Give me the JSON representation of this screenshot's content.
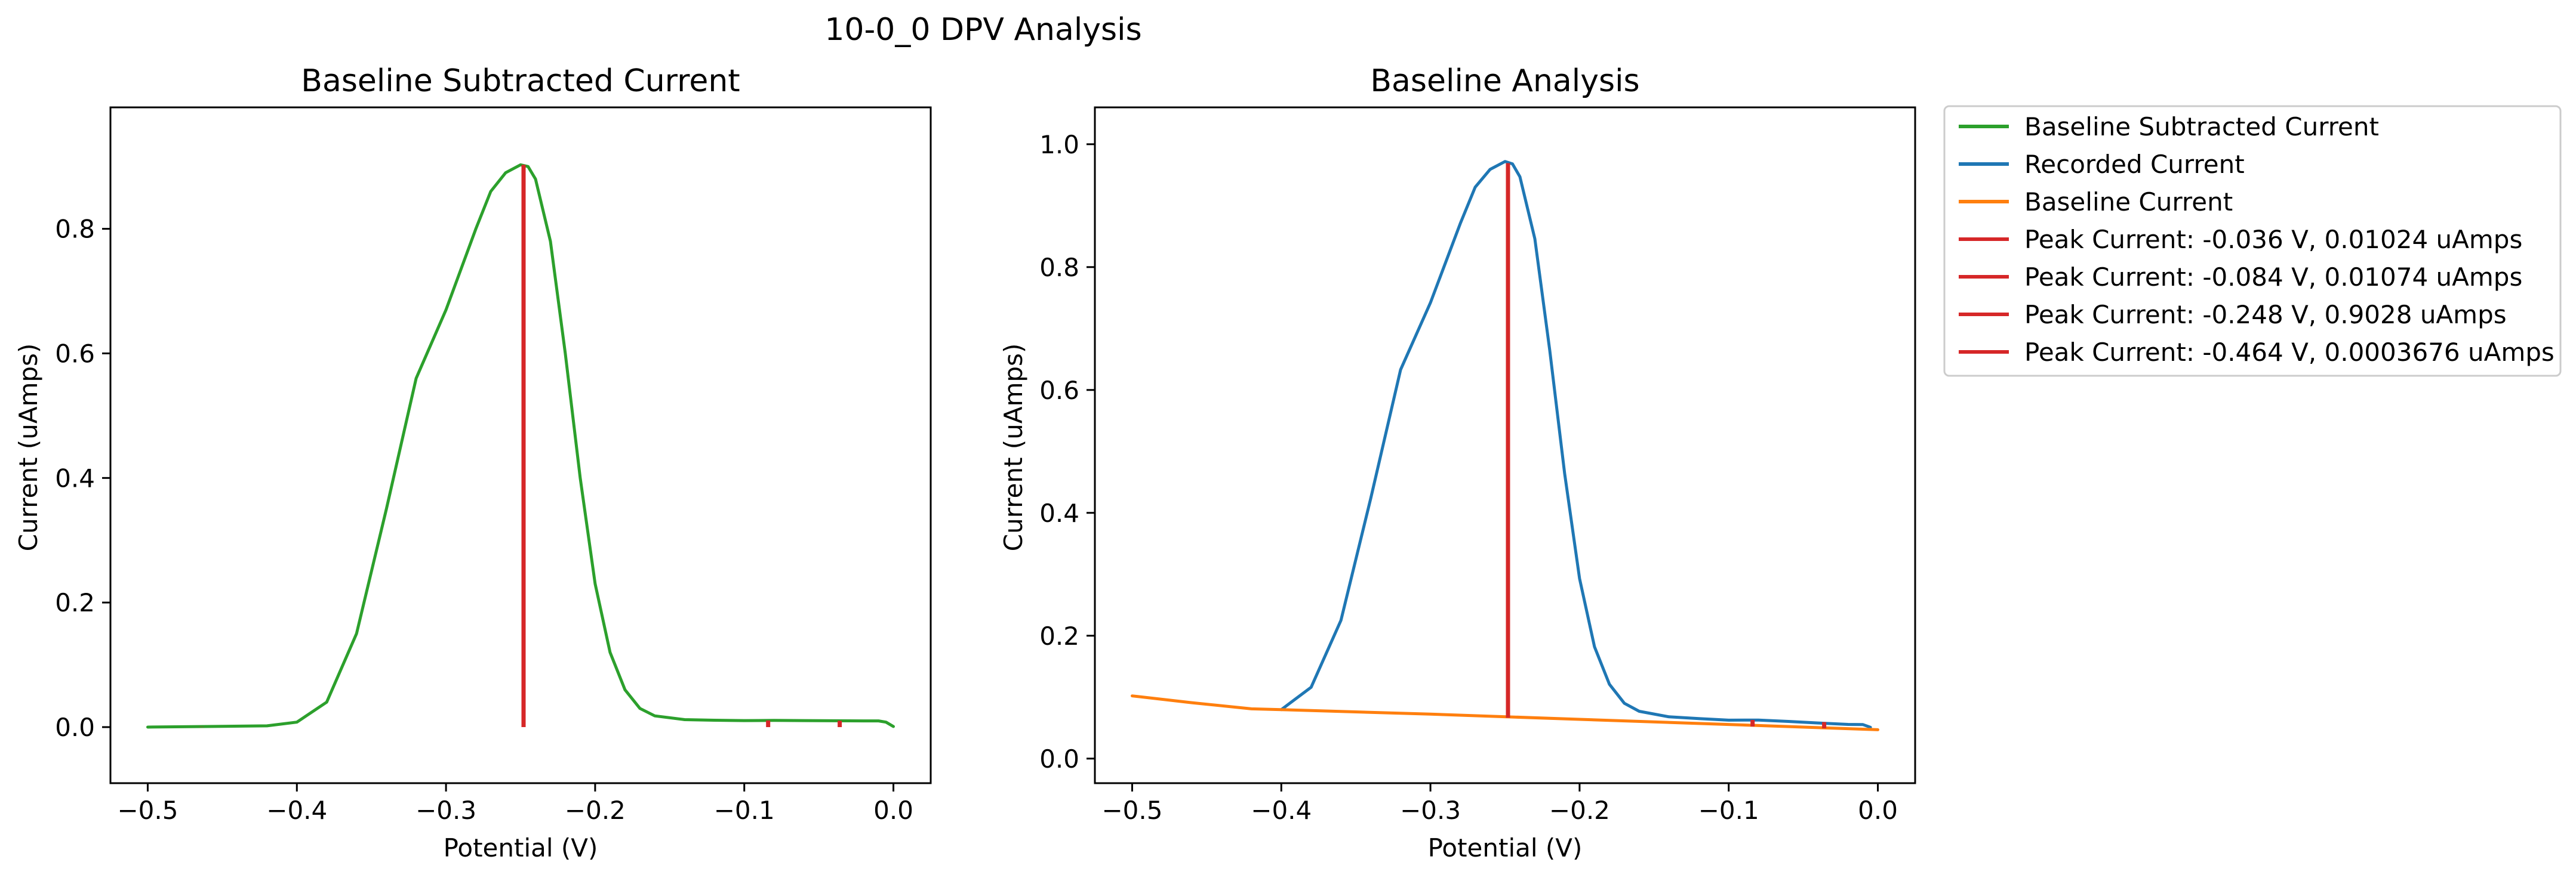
{
  "figure": {
    "suptitle": "10-0_0 DPV Analysis"
  },
  "colors": {
    "green": "#2ca02c",
    "blue": "#1f77b4",
    "orange": "#ff7f0e",
    "red": "#d62728"
  },
  "chart_data": [
    {
      "type": "line",
      "title": "Baseline Subtracted Current",
      "xlabel": "Potential (V)",
      "ylabel": "Current (uAmps)",
      "xlim": [
        -0.525,
        0.025
      ],
      "ylim": [
        -0.09,
        0.995
      ],
      "xticks": [
        -0.5,
        -0.4,
        -0.3,
        -0.2,
        -0.1,
        0.0
      ],
      "xtick_labels": [
        "−0.5",
        "−0.4",
        "−0.3",
        "−0.2",
        "−0.1",
        "0.0"
      ],
      "yticks": [
        0.0,
        0.2,
        0.4,
        0.6,
        0.8
      ],
      "ytick_labels": [
        "0.0",
        "0.2",
        "0.4",
        "0.6",
        "0.8"
      ],
      "grid": false,
      "series": [
        {
          "name": "Baseline Subtracted Current",
          "color": "#2ca02c",
          "x": [
            -0.5,
            -0.46,
            -0.42,
            -0.4,
            -0.38,
            -0.36,
            -0.34,
            -0.32,
            -0.3,
            -0.28,
            -0.27,
            -0.26,
            -0.25,
            -0.245,
            -0.24,
            -0.23,
            -0.22,
            -0.21,
            -0.2,
            -0.19,
            -0.18,
            -0.17,
            -0.16,
            -0.14,
            -0.12,
            -0.1,
            -0.08,
            -0.06,
            -0.04,
            -0.02,
            -0.01,
            -0.005,
            0.0
          ],
          "y": [
            0.0,
            0.001,
            0.002,
            0.008,
            0.04,
            0.15,
            0.35,
            0.56,
            0.67,
            0.8,
            0.86,
            0.89,
            0.9028,
            0.9,
            0.88,
            0.78,
            0.6,
            0.4,
            0.23,
            0.12,
            0.06,
            0.03,
            0.018,
            0.012,
            0.011,
            0.0105,
            0.0107,
            0.0105,
            0.0102,
            0.01,
            0.01,
            0.008,
            0.001
          ]
        }
      ],
      "peaks": [
        {
          "x": -0.036,
          "height": 0.01024
        },
        {
          "x": -0.084,
          "height": 0.01074
        },
        {
          "x": -0.248,
          "height": 0.9028
        },
        {
          "x": -0.464,
          "height": 0.0003676
        }
      ]
    },
    {
      "type": "line",
      "title": "Baseline Analysis",
      "xlabel": "Potential (V)",
      "ylabel": "Current (uAmps)",
      "xlim": [
        -0.525,
        0.025
      ],
      "ylim": [
        -0.04,
        1.06
      ],
      "xticks": [
        -0.5,
        -0.4,
        -0.3,
        -0.2,
        -0.1,
        0.0
      ],
      "xtick_labels": [
        "−0.5",
        "−0.4",
        "−0.3",
        "−0.2",
        "−0.1",
        "0.0"
      ],
      "yticks": [
        0.0,
        0.2,
        0.4,
        0.6,
        0.8,
        1.0
      ],
      "ytick_labels": [
        "0.0",
        "0.2",
        "0.4",
        "0.6",
        "0.8",
        "1.0"
      ],
      "grid": false,
      "series": [
        {
          "name": "Recorded Current",
          "color": "#1f77b4",
          "x": [
            -0.4,
            -0.38,
            -0.36,
            -0.34,
            -0.32,
            -0.3,
            -0.28,
            -0.27,
            -0.26,
            -0.25,
            -0.245,
            -0.24,
            -0.23,
            -0.22,
            -0.21,
            -0.2,
            -0.19,
            -0.18,
            -0.17,
            -0.16,
            -0.14,
            -0.12,
            -0.1,
            -0.08,
            -0.06,
            -0.04,
            -0.02,
            -0.01,
            -0.005
          ],
          "y": [
            0.0797,
            0.116,
            0.225,
            0.424,
            0.633,
            0.742,
            0.871,
            0.93,
            0.959,
            0.9718,
            0.968,
            0.947,
            0.846,
            0.665,
            0.464,
            0.293,
            0.182,
            0.121,
            0.09,
            0.077,
            0.068,
            0.065,
            0.0625,
            0.0627,
            0.0605,
            0.058,
            0.0556,
            0.0553,
            0.051
          ]
        },
        {
          "name": "Baseline Current",
          "color": "#ff7f0e",
          "x": [
            -0.5,
            -0.46,
            -0.42,
            -0.4,
            -0.3,
            -0.2,
            -0.1,
            0.0
          ],
          "y": [
            0.102,
            0.091,
            0.081,
            0.0797,
            0.0723,
            0.0639,
            0.0555,
            0.047
          ]
        }
      ],
      "peaks": [
        {
          "x": -0.036,
          "base": 0.0492,
          "height": 0.01024
        },
        {
          "x": -0.084,
          "base": 0.0522,
          "height": 0.01074
        },
        {
          "x": -0.248,
          "base": 0.0664,
          "height": 0.9028
        }
      ]
    }
  ],
  "legend": {
    "placement": "outside upper right",
    "entries": [
      {
        "label": "Baseline Subtracted Current",
        "color": "#2ca02c"
      },
      {
        "label": "Recorded Current",
        "color": "#1f77b4"
      },
      {
        "label": "Baseline Current",
        "color": "#ff7f0e"
      },
      {
        "label": "Peak Current: -0.036 V, 0.01024 uAmps",
        "color": "#d62728"
      },
      {
        "label": "Peak Current: -0.084 V, 0.01074 uAmps",
        "color": "#d62728"
      },
      {
        "label": "Peak Current: -0.248 V, 0.9028 uAmps",
        "color": "#d62728"
      },
      {
        "label": "Peak Current: -0.464 V, 0.0003676 uAmps",
        "color": "#d62728"
      }
    ]
  }
}
